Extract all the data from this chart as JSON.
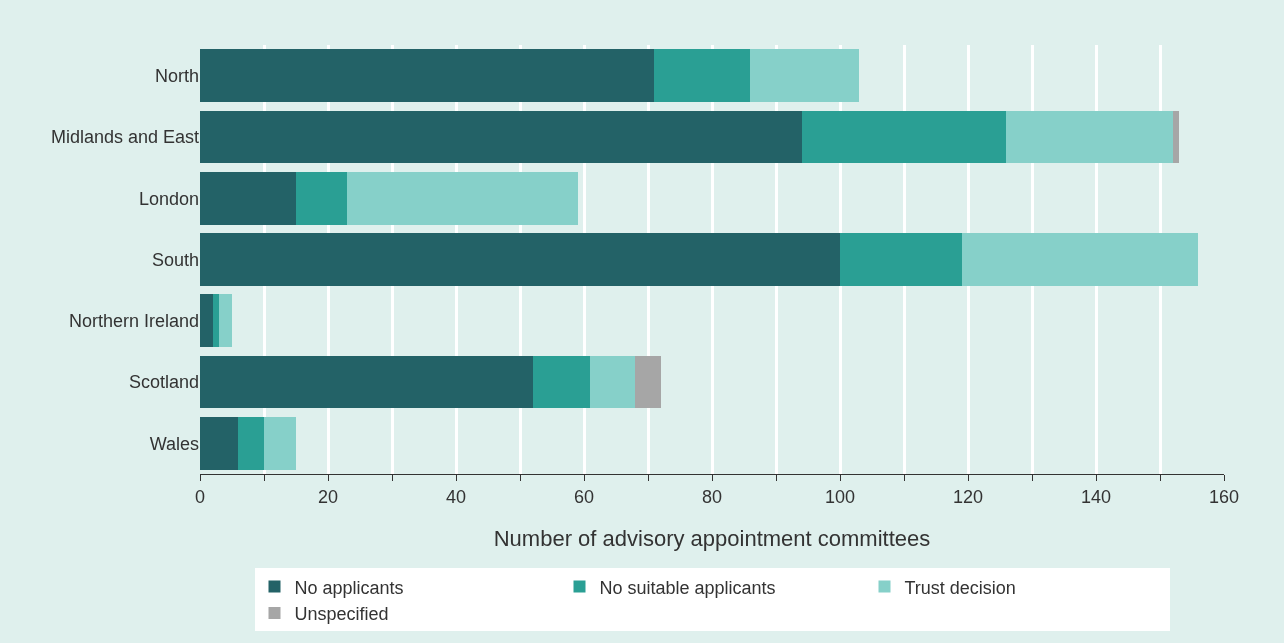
{
  "chart_data": {
    "type": "bar",
    "orientation": "horizontal",
    "stacked": true,
    "categories": [
      "North",
      "Midlands and East",
      "London",
      "South",
      "Northern Ireland",
      "Scotland",
      "Wales"
    ],
    "series": [
      {
        "name": "No applicants",
        "color": "#236267",
        "values": [
          71,
          94,
          15,
          100,
          2,
          52,
          6
        ]
      },
      {
        "name": "No suitable applicants",
        "color": "#2a9f94",
        "values": [
          15,
          32,
          8,
          19,
          1,
          9,
          4
        ]
      },
      {
        "name": "Trust decision",
        "color": "#86d0c9",
        "values": [
          17,
          26,
          36,
          37,
          2,
          7,
          5
        ]
      },
      {
        "name": "Unspecified",
        "color": "#a6a6a6",
        "values": [
          0,
          1,
          0,
          0,
          0,
          4,
          0
        ]
      }
    ],
    "xlabel": "Number of advisory appointment committees",
    "xlim": [
      0,
      160
    ],
    "xticks": [
      0,
      {
        "value": 10,
        "label": null
      },
      20,
      {
        "value": 30,
        "label": null
      },
      40,
      {
        "value": 50,
        "label": null
      },
      60,
      {
        "value": 70,
        "label": null
      },
      80,
      {
        "value": 90,
        "label": null
      },
      100,
      {
        "value": 110,
        "label": null
      },
      120,
      {
        "value": 130,
        "label": null
      },
      140,
      {
        "value": 150,
        "label": null
      },
      160
    ],
    "grid": "x",
    "legend": "bottom"
  }
}
